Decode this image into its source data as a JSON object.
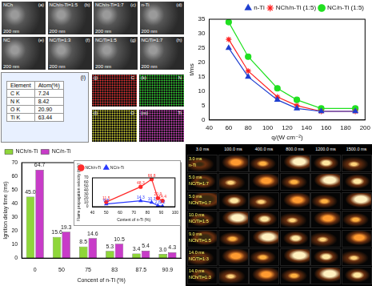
{
  "chart_data": [
    {
      "type": "line",
      "x_label": "q/(W cm⁻²)",
      "y_label": "t/ms",
      "x": [
        60,
        80,
        110,
        130,
        155,
        190
      ],
      "series": [
        {
          "name": "n-Ti",
          "color": "#1f3fd0",
          "marker": "triangle",
          "line_style": "solid",
          "values": [
            25,
            15,
            7,
            4,
            3,
            3
          ]
        },
        {
          "name": "NCh/n-Ti (1:5)",
          "color": "#ff2020",
          "marker": "star",
          "line_style": "solid",
          "values": [
            28,
            17,
            8,
            5,
            3,
            3
          ]
        },
        {
          "name": "NC/n-Ti (1:5)",
          "color": "#20e020",
          "marker": "circle",
          "line_style": "solid",
          "values": [
            34,
            22,
            11,
            7,
            4,
            4
          ]
        }
      ],
      "xlim": [
        40,
        200
      ],
      "xticks": [
        40,
        60,
        80,
        100,
        120,
        140,
        160,
        180,
        200
      ],
      "ylim": [
        0,
        35
      ],
      "yticks": [
        0,
        5,
        10,
        15,
        20,
        25,
        30,
        35
      ],
      "grid": false,
      "legend": "upper right"
    },
    {
      "type": "bar",
      "x_label": "Concent of n-Ti (%)",
      "y_label": "Ignition delay time (ms)",
      "categories": [
        "0",
        "50",
        "75",
        "83",
        "87.5",
        "90.9"
      ],
      "series": [
        {
          "name": "NCh/n-Ti",
          "color": "#8fd63a",
          "values": [
            45.0,
            15.6,
            8.5,
            5.3,
            3.4,
            3.0
          ],
          "value_labels": [
            "45.0",
            "15.6",
            "8.5",
            "5.3",
            "3.4",
            "3.0"
          ]
        },
        {
          "name": "NC/n-Ti",
          "color": "#c83cc8",
          "values": [
            64.7,
            19.3,
            14.6,
            10.5,
            5.4,
            4.3
          ],
          "value_labels": [
            "64.7",
            "19.3",
            "14.6",
            "10.5",
            "5.4",
            "4.3"
          ]
        }
      ],
      "ylim": [
        0,
        70
      ],
      "yticks": [
        0,
        10,
        20,
        30,
        40,
        50,
        60,
        70
      ],
      "grid": false,
      "legend": "upper left",
      "data_labels": true
    },
    {
      "type": "line",
      "x_label": "Content of n-Ti (%)",
      "y_label": "Flame propagation velocity (m/s)",
      "x": [
        50,
        75,
        83,
        87.5,
        90.9
      ],
      "series": [
        {
          "name": "NCh/n-Ti",
          "color": "#ff2a2a",
          "marker": "circle",
          "line_style": "solid",
          "values": [
            11.5,
            48.3,
            66.8,
            20.9,
            14.4
          ]
        },
        {
          "name": "NC/n-Ti",
          "color": "#2a3aff",
          "marker": "triangle",
          "line_style": "solid",
          "values": [
            6.5,
            14.3,
            10.3,
            2.6,
            1.2
          ]
        }
      ],
      "xlim": [
        40,
        100
      ],
      "xticks": [
        40,
        50,
        60,
        70,
        80,
        90,
        100
      ],
      "ylim": [
        0,
        70
      ],
      "yticks": [
        0,
        10,
        20,
        30,
        40,
        50,
        60,
        70
      ],
      "grid": false,
      "legend": "upper left",
      "data_labels": true
    }
  ],
  "sem_panels": [
    {
      "panel": "(a)",
      "name": "NCh",
      "scale": "200 nm"
    },
    {
      "panel": "(b)",
      "name": "NCh/n-Ti=1:5",
      "scale": "200 nm"
    },
    {
      "panel": "(c)",
      "name": "NCh/n-Ti=1:7",
      "scale": "200 nm"
    },
    {
      "panel": "(d)",
      "name": "n-Ti",
      "scale": "200 nm"
    },
    {
      "panel": "(e)",
      "name": "NC",
      "scale": "200 nm"
    },
    {
      "panel": "(f)",
      "name": "NC/Ti=1:3",
      "scale": "200 nm"
    },
    {
      "panel": "(g)",
      "name": "NC/Ti=1:5",
      "scale": "200 nm"
    },
    {
      "panel": "(h)",
      "name": "NC/Ti=1:7",
      "scale": "200 nm"
    }
  ],
  "eds": {
    "panel": "(i)",
    "header": [
      "Element",
      "Atom(%)"
    ],
    "rows": [
      [
        "C K",
        "7.24"
      ],
      [
        "N K",
        "8.42"
      ],
      [
        "O K",
        "20.90"
      ],
      [
        "Ti K",
        "63.44"
      ]
    ]
  },
  "maps": [
    {
      "panel": "(j)",
      "element": "C",
      "color": "#e03030"
    },
    {
      "panel": "(k)",
      "element": "N",
      "color": "#30d030"
    },
    {
      "panel": "(l)",
      "element": "O",
      "color": "#d0d030"
    },
    {
      "panel": "(m)",
      "element": "Ti",
      "color": "#d040c0"
    }
  ],
  "flame_images": {
    "times": [
      "3.0 ms",
      "100.0 ms",
      "400.0 ms",
      "800.0 ms",
      "1200.0 ms",
      "1500.0 ms"
    ],
    "rows": [
      {
        "name": "n-Ti",
        "time": "3.0 ms"
      },
      {
        "name": "NC/Ti=1:7",
        "time": "5.0 ms"
      },
      {
        "name": "NCh/Ti=1:7",
        "time": "5.0 ms"
      },
      {
        "name": "NC/Ti=1:5",
        "time": "10.0 ms"
      },
      {
        "name": "NCh/Ti=1:5",
        "time": "9.0 ms"
      },
      {
        "name": "NC/Ti=1:3",
        "time": "14.0 ms"
      },
      {
        "name": "NCh/Ti=1:3",
        "time": "14.0 ms"
      }
    ]
  }
}
